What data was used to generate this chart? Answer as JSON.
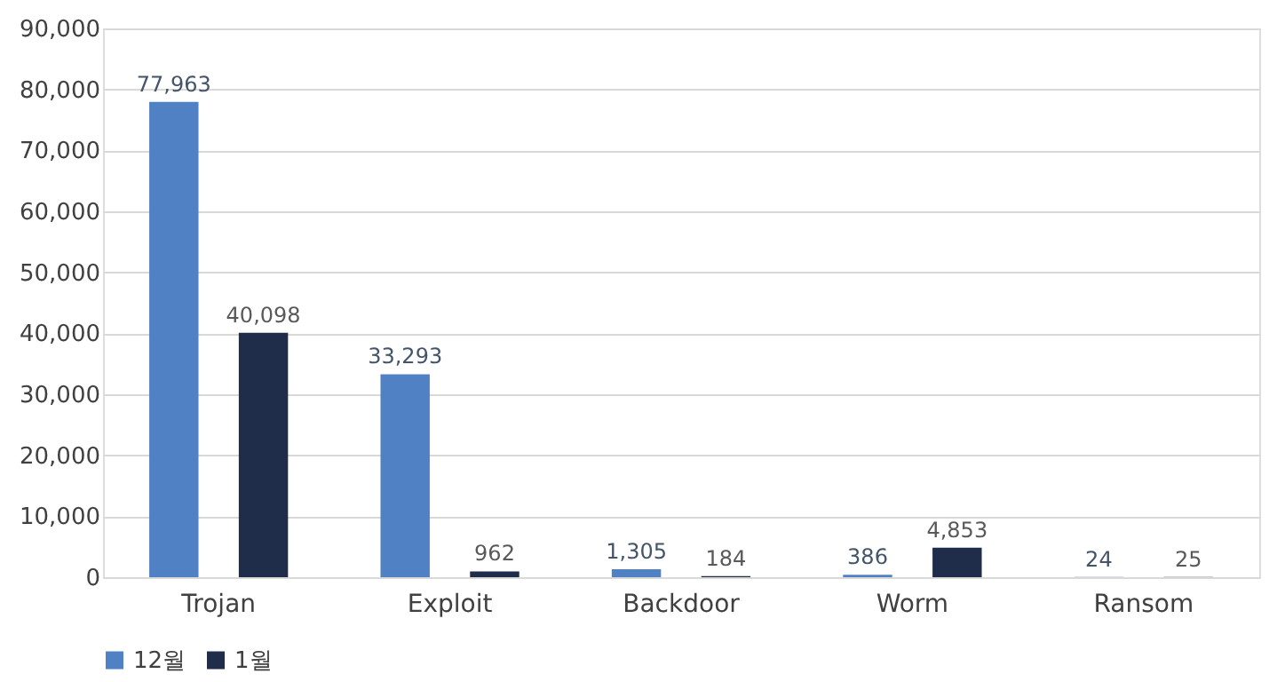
{
  "chart_data": {
    "type": "bar",
    "categories": [
      "Trojan",
      "Exploit",
      "Backdoor",
      "Worm",
      "Ransom"
    ],
    "series": [
      {
        "name": "12월",
        "color": "#4f81c4",
        "values": [
          77963,
          33293,
          1305,
          386,
          24
        ],
        "value_labels": [
          "77,963",
          "33,293",
          "1,305",
          "386",
          "24"
        ]
      },
      {
        "name": "1월",
        "color": "#1f2d4a",
        "values": [
          40098,
          962,
          184,
          4853,
          25
        ],
        "value_labels": [
          "40,098",
          "962",
          "184",
          "4,853",
          "25"
        ]
      }
    ],
    "ylim": [
      0,
      90000
    ],
    "yticks": [
      0,
      {
        "value": 10000,
        "label": "10,000"
      },
      {
        "value": 20000,
        "label": "20,000"
      },
      {
        "value": 30000,
        "label": "30,000"
      },
      {
        "value": 40000,
        "label": "40,000"
      },
      {
        "value": 50000,
        "label": "50,000"
      },
      {
        "value": 60000,
        "label": "60,000"
      },
      {
        "value": 70000,
        "label": "70,000"
      },
      {
        "value": 80000,
        "label": "80,000"
      },
      {
        "value": 90000,
        "label": "90,000"
      }
    ],
    "grid": "y",
    "legend": "bottom"
  }
}
